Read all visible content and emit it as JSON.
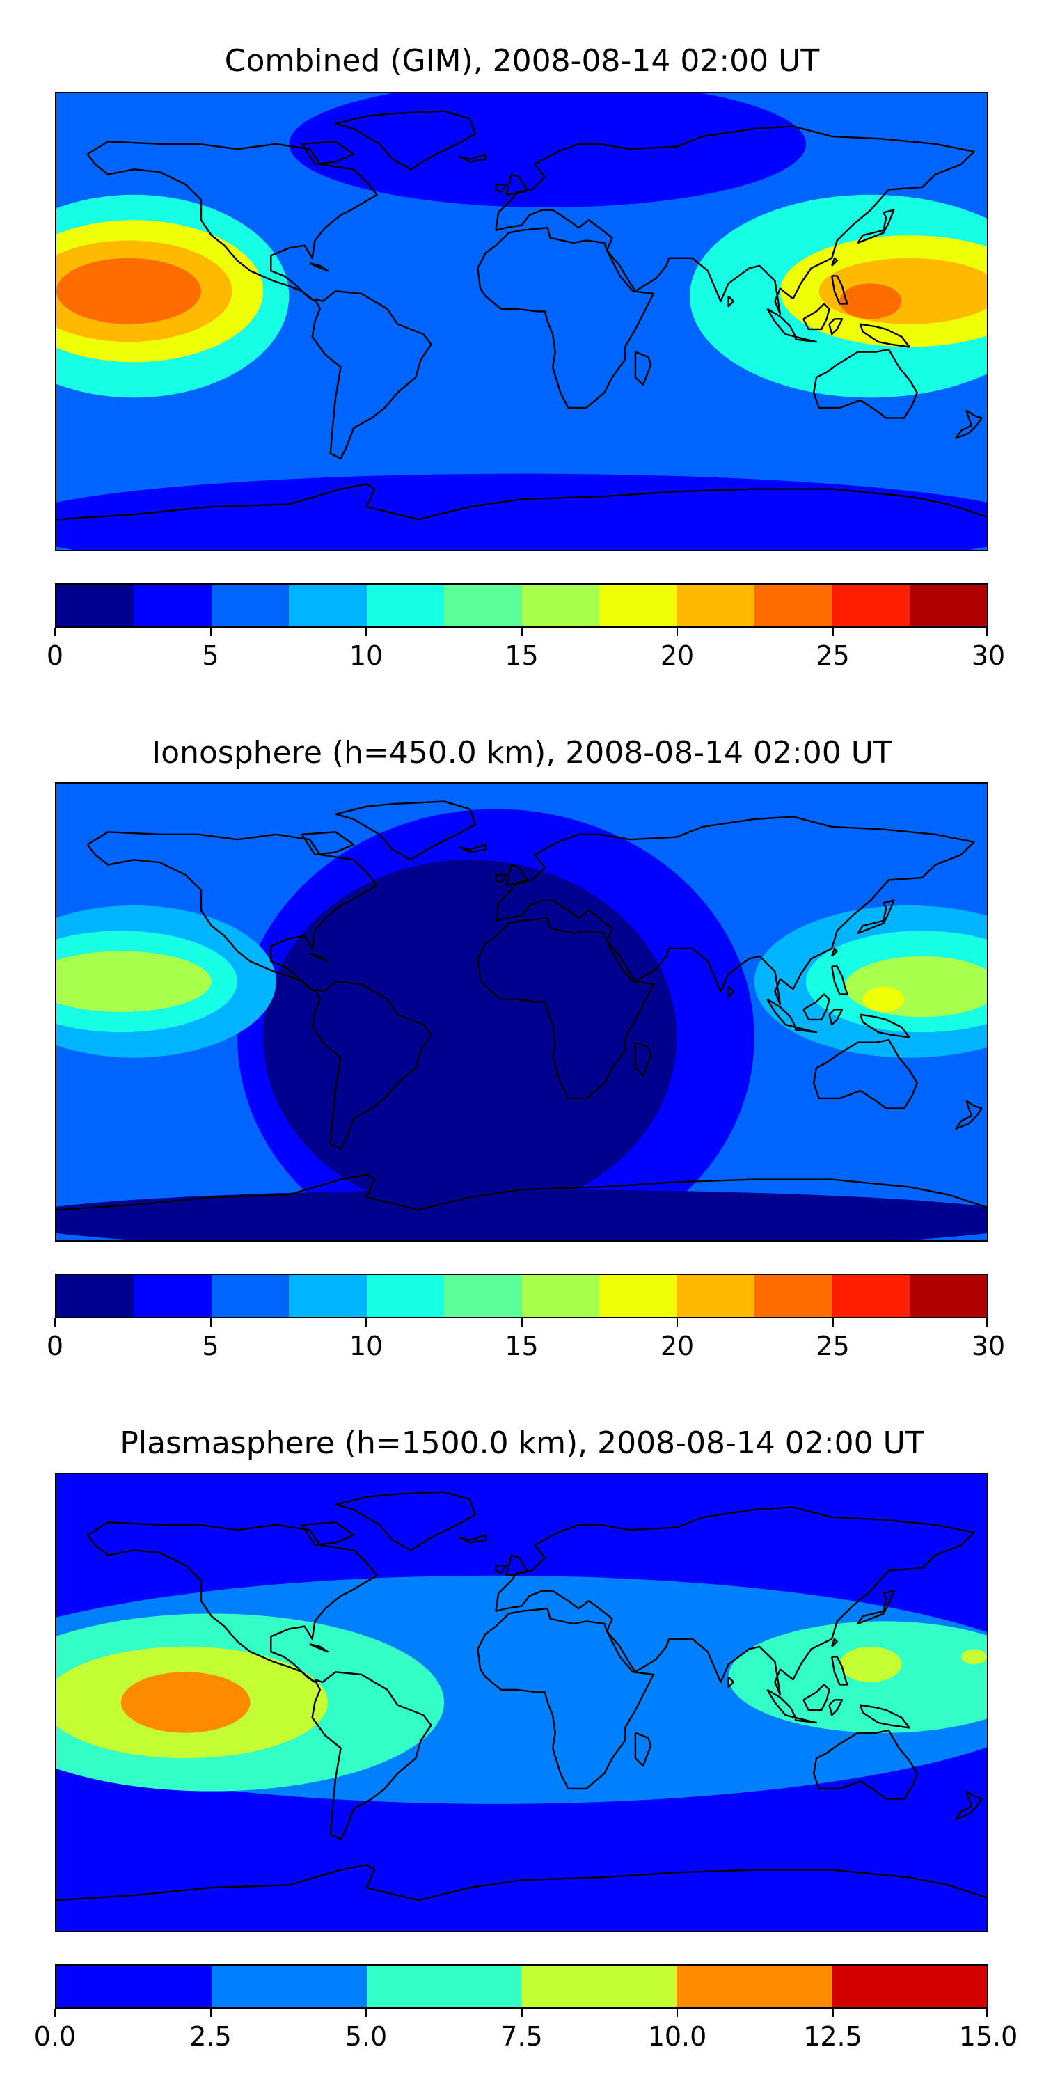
{
  "panels": [
    {
      "title": "Combined (GIM), 2008-08-14 02:00 UT",
      "colorbar": {
        "colors": [
          "#00008f",
          "#0000ff",
          "#0064ff",
          "#00b4ff",
          "#17ffe4",
          "#5cff98",
          "#a8ff4c",
          "#eeff06",
          "#ffba00",
          "#ff6c00",
          "#ff1f00",
          "#b00000"
        ],
        "tick_labels": [
          "0",
          "5",
          "10",
          "15",
          "20",
          "25",
          "30"
        ]
      },
      "field": {
        "background": "#0064ff",
        "blobs": [
          {
            "lon": -150,
            "lat": 10,
            "rx": 60,
            "ry": 40,
            "color": "#17ffe4"
          },
          {
            "lon": -150,
            "lat": 12,
            "rx": 50,
            "ry": 28,
            "color": "#eeff06"
          },
          {
            "lon": -152,
            "lat": 12,
            "rx": 40,
            "ry": 20,
            "color": "#ffba00"
          },
          {
            "lon": -152,
            "lat": 12,
            "rx": 28,
            "ry": 13,
            "color": "#ff6c00"
          },
          {
            "lon": 135,
            "lat": 10,
            "rx": 70,
            "ry": 40,
            "color": "#17ffe4"
          },
          {
            "lon": 150,
            "lat": 12,
            "rx": 50,
            "ry": 22,
            "color": "#eeff06"
          },
          {
            "lon": 150,
            "lat": 12,
            "rx": 35,
            "ry": 13,
            "color": "#ffba00"
          },
          {
            "lon": 135,
            "lat": 8,
            "rx": 12,
            "ry": 7,
            "color": "#ff6c00"
          },
          {
            "lon": 10,
            "lat": 70,
            "rx": 100,
            "ry": 25,
            "color": "#0000ff"
          },
          {
            "lon": 0,
            "lat": -80,
            "rx": 200,
            "ry": 20,
            "color": "#0000ff"
          }
        ]
      }
    },
    {
      "title": "Ionosphere  (h=450.0 km), 2008-08-14 02:00 UT",
      "colorbar": {
        "colors": [
          "#00008f",
          "#0000ff",
          "#0064ff",
          "#00b4ff",
          "#17ffe4",
          "#5cff98",
          "#a8ff4c",
          "#eeff06",
          "#ffba00",
          "#ff6c00",
          "#ff1f00",
          "#b00000"
        ],
        "tick_labels": [
          "0",
          "5",
          "10",
          "15",
          "20",
          "25",
          "30"
        ]
      },
      "field": {
        "background": "#0064ff",
        "blobs": [
          {
            "lon": -10,
            "lat": -10,
            "rx": 100,
            "ry": 90,
            "color": "#0000ff"
          },
          {
            "lon": -20,
            "lat": -10,
            "rx": 80,
            "ry": 70,
            "color": "#00008f"
          },
          {
            "lon": -150,
            "lat": 12,
            "rx": 55,
            "ry": 30,
            "color": "#00b4ff"
          },
          {
            "lon": -155,
            "lat": 12,
            "rx": 45,
            "ry": 20,
            "color": "#17ffe4"
          },
          {
            "lon": -155,
            "lat": 12,
            "rx": 35,
            "ry": 12,
            "color": "#a8ff4c"
          },
          {
            "lon": 150,
            "lat": 12,
            "rx": 60,
            "ry": 30,
            "color": "#00b4ff"
          },
          {
            "lon": 155,
            "lat": 12,
            "rx": 45,
            "ry": 20,
            "color": "#17ffe4"
          },
          {
            "lon": 155,
            "lat": 10,
            "rx": 30,
            "ry": 12,
            "color": "#a8ff4c"
          },
          {
            "lon": 140,
            "lat": 5,
            "rx": 8,
            "ry": 5,
            "color": "#eeff06"
          },
          {
            "lon": 0,
            "lat": -82,
            "rx": 200,
            "ry": 12,
            "color": "#00008f"
          }
        ]
      }
    },
    {
      "title": "Plasmasphere (h=1500.0 km), 2008-08-14 02:00 UT",
      "colorbar": {
        "colors": [
          "#0000ff",
          "#0080ff",
          "#33ffc7",
          "#c3ff33",
          "#ff8c00",
          "#d40000"
        ],
        "tick_labels": [
          "0.0",
          "2.5",
          "5.0",
          "7.5",
          "10.0",
          "12.5",
          "15.0"
        ]
      },
      "field": {
        "background": "#0000ff",
        "blobs": [
          {
            "lon": -10,
            "lat": 5,
            "rx": 220,
            "ry": 45,
            "color": "#0080ff"
          },
          {
            "lon": -120,
            "lat": 0,
            "rx": 90,
            "ry": 35,
            "color": "#33ffc7"
          },
          {
            "lon": 140,
            "lat": 10,
            "rx": 60,
            "ry": 22,
            "color": "#33ffc7"
          },
          {
            "lon": -130,
            "lat": 0,
            "rx": 55,
            "ry": 22,
            "color": "#c3ff33"
          },
          {
            "lon": 135,
            "lat": 15,
            "rx": 12,
            "ry": 7,
            "color": "#c3ff33"
          },
          {
            "lon": 175,
            "lat": 18,
            "rx": 5,
            "ry": 3,
            "color": "#c3ff33"
          },
          {
            "lon": -130,
            "lat": 0,
            "rx": 25,
            "ry": 12,
            "color": "#ff8c00"
          }
        ]
      }
    }
  ]
}
